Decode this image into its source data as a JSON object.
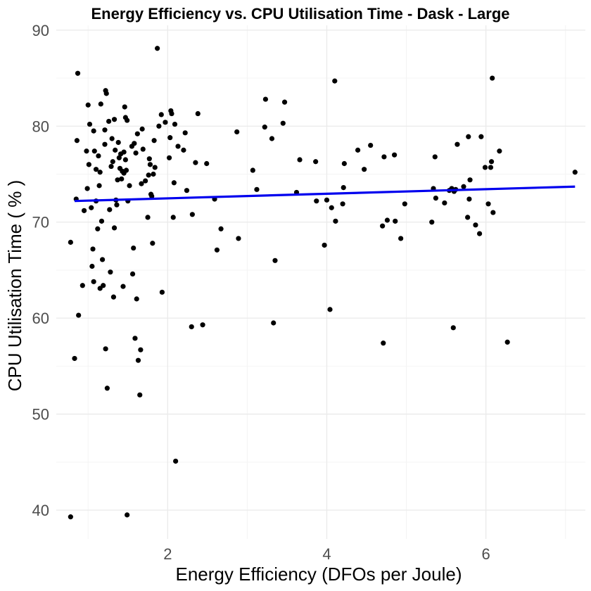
{
  "chart_data": {
    "type": "scatter",
    "title": "Energy Efficiency vs. CPU Utilisation Time  -  Dask  -  Large",
    "xlabel": "Energy Efficiency (DFOs per Joule)",
    "ylabel": "CPU Utilisation Time ( % )",
    "xlim": [
      0.6,
      7.25
    ],
    "ylim": [
      37,
      90.5
    ],
    "x_ticks": [
      2,
      4,
      6
    ],
    "y_ticks": [
      40,
      50,
      60,
      70,
      80,
      90
    ],
    "grid": true,
    "point_color": "#000000",
    "trend_color": "#0000ee",
    "trend_line": {
      "x": [
        0.83,
        7.12
      ],
      "y": [
        72.2,
        73.7
      ]
    },
    "points": [
      {
        "x": 0.78,
        "y": 39.3
      },
      {
        "x": 0.78,
        "y": 67.9
      },
      {
        "x": 0.83,
        "y": 55.8
      },
      {
        "x": 0.85,
        "y": 72.4
      },
      {
        "x": 0.86,
        "y": 78.5
      },
      {
        "x": 0.87,
        "y": 85.5
      },
      {
        "x": 0.88,
        "y": 60.3
      },
      {
        "x": 0.93,
        "y": 63.4
      },
      {
        "x": 0.95,
        "y": 71.2
      },
      {
        "x": 0.98,
        "y": 77.4
      },
      {
        "x": 0.99,
        "y": 73.5
      },
      {
        "x": 1.0,
        "y": 82.2
      },
      {
        "x": 1.01,
        "y": 76.0
      },
      {
        "x": 1.02,
        "y": 80.2
      },
      {
        "x": 1.04,
        "y": 71.5
      },
      {
        "x": 1.05,
        "y": 65.4
      },
      {
        "x": 1.06,
        "y": 67.2
      },
      {
        "x": 1.07,
        "y": 79.5
      },
      {
        "x": 1.07,
        "y": 63.8
      },
      {
        "x": 1.08,
        "y": 77.4
      },
      {
        "x": 1.1,
        "y": 75.5
      },
      {
        "x": 1.1,
        "y": 72.2
      },
      {
        "x": 1.12,
        "y": 69.3
      },
      {
        "x": 1.13,
        "y": 76.9
      },
      {
        "x": 1.14,
        "y": 73.8
      },
      {
        "x": 1.15,
        "y": 75.2
      },
      {
        "x": 1.15,
        "y": 63.1
      },
      {
        "x": 1.16,
        "y": 82.3
      },
      {
        "x": 1.17,
        "y": 70.1
      },
      {
        "x": 1.18,
        "y": 66.1
      },
      {
        "x": 1.19,
        "y": 63.4
      },
      {
        "x": 1.21,
        "y": 79.6
      },
      {
        "x": 1.21,
        "y": 78.1
      },
      {
        "x": 1.22,
        "y": 83.7
      },
      {
        "x": 1.22,
        "y": 56.8
      },
      {
        "x": 1.23,
        "y": 83.4
      },
      {
        "x": 1.24,
        "y": 52.7
      },
      {
        "x": 1.26,
        "y": 80.5
      },
      {
        "x": 1.27,
        "y": 71.3
      },
      {
        "x": 1.28,
        "y": 64.8
      },
      {
        "x": 1.29,
        "y": 75.8
      },
      {
        "x": 1.3,
        "y": 78.7
      },
      {
        "x": 1.31,
        "y": 76.3
      },
      {
        "x": 1.32,
        "y": 62.2
      },
      {
        "x": 1.33,
        "y": 80.7
      },
      {
        "x": 1.33,
        "y": 69.4
      },
      {
        "x": 1.34,
        "y": 77.5
      },
      {
        "x": 1.35,
        "y": 72.3
      },
      {
        "x": 1.36,
        "y": 71.8
      },
      {
        "x": 1.37,
        "y": 74.4
      },
      {
        "x": 1.38,
        "y": 78.3
      },
      {
        "x": 1.39,
        "y": 76.7
      },
      {
        "x": 1.4,
        "y": 75.6
      },
      {
        "x": 1.41,
        "y": 77.1
      },
      {
        "x": 1.42,
        "y": 74.5
      },
      {
        "x": 1.43,
        "y": 75.3
      },
      {
        "x": 1.44,
        "y": 63.3
      },
      {
        "x": 1.45,
        "y": 77.3
      },
      {
        "x": 1.45,
        "y": 75.1
      },
      {
        "x": 1.46,
        "y": 82.0
      },
      {
        "x": 1.47,
        "y": 80.9
      },
      {
        "x": 1.47,
        "y": 76.5
      },
      {
        "x": 1.48,
        "y": 75.4
      },
      {
        "x": 1.49,
        "y": 80.6
      },
      {
        "x": 1.49,
        "y": 39.5
      },
      {
        "x": 1.5,
        "y": 72.2
      },
      {
        "x": 1.52,
        "y": 73.8
      },
      {
        "x": 1.55,
        "y": 77.9
      },
      {
        "x": 1.56,
        "y": 64.6
      },
      {
        "x": 1.57,
        "y": 67.3
      },
      {
        "x": 1.58,
        "y": 78.2
      },
      {
        "x": 1.59,
        "y": 57.9
      },
      {
        "x": 1.6,
        "y": 77.2
      },
      {
        "x": 1.61,
        "y": 62.0
      },
      {
        "x": 1.62,
        "y": 79.2
      },
      {
        "x": 1.63,
        "y": 55.6
      },
      {
        "x": 1.65,
        "y": 52.0
      },
      {
        "x": 1.66,
        "y": 56.7
      },
      {
        "x": 1.67,
        "y": 74.0
      },
      {
        "x": 1.68,
        "y": 79.7
      },
      {
        "x": 1.69,
        "y": 77.6
      },
      {
        "x": 1.72,
        "y": 74.3
      },
      {
        "x": 1.75,
        "y": 70.5
      },
      {
        "x": 1.76,
        "y": 74.9
      },
      {
        "x": 1.77,
        "y": 76.6
      },
      {
        "x": 1.78,
        "y": 76.0
      },
      {
        "x": 1.79,
        "y": 72.9
      },
      {
        "x": 1.8,
        "y": 72.7
      },
      {
        "x": 1.81,
        "y": 67.8
      },
      {
        "x": 1.82,
        "y": 75.0
      },
      {
        "x": 1.83,
        "y": 78.5
      },
      {
        "x": 1.84,
        "y": 75.7
      },
      {
        "x": 1.87,
        "y": 88.1
      },
      {
        "x": 1.89,
        "y": 80.0
      },
      {
        "x": 1.92,
        "y": 81.2
      },
      {
        "x": 1.93,
        "y": 62.7
      },
      {
        "x": 1.97,
        "y": 80.4
      },
      {
        "x": 2.02,
        "y": 76.7
      },
      {
        "x": 2.03,
        "y": 78.8
      },
      {
        "x": 2.04,
        "y": 81.6
      },
      {
        "x": 2.05,
        "y": 81.3
      },
      {
        "x": 2.07,
        "y": 70.5
      },
      {
        "x": 2.08,
        "y": 74.1
      },
      {
        "x": 2.09,
        "y": 80.2
      },
      {
        "x": 2.1,
        "y": 45.1
      },
      {
        "x": 2.13,
        "y": 77.9
      },
      {
        "x": 2.2,
        "y": 77.5
      },
      {
        "x": 2.22,
        "y": 79.3
      },
      {
        "x": 2.24,
        "y": 73.3
      },
      {
        "x": 2.3,
        "y": 59.1
      },
      {
        "x": 2.31,
        "y": 70.8
      },
      {
        "x": 2.35,
        "y": 76.2
      },
      {
        "x": 2.38,
        "y": 81.3
      },
      {
        "x": 2.44,
        "y": 59.3
      },
      {
        "x": 2.49,
        "y": 76.1
      },
      {
        "x": 2.59,
        "y": 72.4
      },
      {
        "x": 2.62,
        "y": 67.1
      },
      {
        "x": 2.67,
        "y": 69.3
      },
      {
        "x": 2.87,
        "y": 79.4
      },
      {
        "x": 2.89,
        "y": 68.3
      },
      {
        "x": 3.07,
        "y": 75.4
      },
      {
        "x": 3.12,
        "y": 73.4
      },
      {
        "x": 3.22,
        "y": 79.9
      },
      {
        "x": 3.23,
        "y": 82.8
      },
      {
        "x": 3.31,
        "y": 78.7
      },
      {
        "x": 3.33,
        "y": 59.5
      },
      {
        "x": 3.35,
        "y": 66.0
      },
      {
        "x": 3.45,
        "y": 80.3
      },
      {
        "x": 3.47,
        "y": 82.5
      },
      {
        "x": 3.62,
        "y": 73.1
      },
      {
        "x": 3.66,
        "y": 76.5
      },
      {
        "x": 3.86,
        "y": 76.3
      },
      {
        "x": 3.87,
        "y": 72.2
      },
      {
        "x": 3.97,
        "y": 67.6
      },
      {
        "x": 4.0,
        "y": 72.3
      },
      {
        "x": 4.04,
        "y": 60.9
      },
      {
        "x": 4.06,
        "y": 71.5
      },
      {
        "x": 4.1,
        "y": 84.7
      },
      {
        "x": 4.11,
        "y": 70.1
      },
      {
        "x": 4.2,
        "y": 71.9
      },
      {
        "x": 4.21,
        "y": 73.6
      },
      {
        "x": 4.22,
        "y": 76.1
      },
      {
        "x": 4.39,
        "y": 77.5
      },
      {
        "x": 4.47,
        "y": 75.5
      },
      {
        "x": 4.55,
        "y": 78.0
      },
      {
        "x": 4.7,
        "y": 69.6
      },
      {
        "x": 4.71,
        "y": 57.4
      },
      {
        "x": 4.72,
        "y": 76.8
      },
      {
        "x": 4.76,
        "y": 70.2
      },
      {
        "x": 4.85,
        "y": 77.0
      },
      {
        "x": 4.86,
        "y": 70.1
      },
      {
        "x": 4.93,
        "y": 68.3
      },
      {
        "x": 4.98,
        "y": 71.9
      },
      {
        "x": 5.32,
        "y": 70.0
      },
      {
        "x": 5.34,
        "y": 73.5
      },
      {
        "x": 5.36,
        "y": 76.8
      },
      {
        "x": 5.37,
        "y": 72.5
      },
      {
        "x": 5.48,
        "y": 72.0
      },
      {
        "x": 5.54,
        "y": 73.3
      },
      {
        "x": 5.57,
        "y": 73.5
      },
      {
        "x": 5.59,
        "y": 59.0
      },
      {
        "x": 5.6,
        "y": 73.2
      },
      {
        "x": 5.62,
        "y": 73.4
      },
      {
        "x": 5.64,
        "y": 78.1
      },
      {
        "x": 5.72,
        "y": 73.7
      },
      {
        "x": 5.77,
        "y": 70.5
      },
      {
        "x": 5.78,
        "y": 78.9
      },
      {
        "x": 5.79,
        "y": 72.4
      },
      {
        "x": 5.8,
        "y": 74.4
      },
      {
        "x": 5.87,
        "y": 69.7
      },
      {
        "x": 5.92,
        "y": 68.8
      },
      {
        "x": 5.94,
        "y": 78.9
      },
      {
        "x": 5.99,
        "y": 75.7
      },
      {
        "x": 6.03,
        "y": 71.9
      },
      {
        "x": 6.06,
        "y": 75.7
      },
      {
        "x": 6.07,
        "y": 76.3
      },
      {
        "x": 6.08,
        "y": 85.0
      },
      {
        "x": 6.09,
        "y": 71.0
      },
      {
        "x": 6.17,
        "y": 77.4
      },
      {
        "x": 6.27,
        "y": 57.5
      },
      {
        "x": 7.12,
        "y": 75.2
      }
    ]
  }
}
